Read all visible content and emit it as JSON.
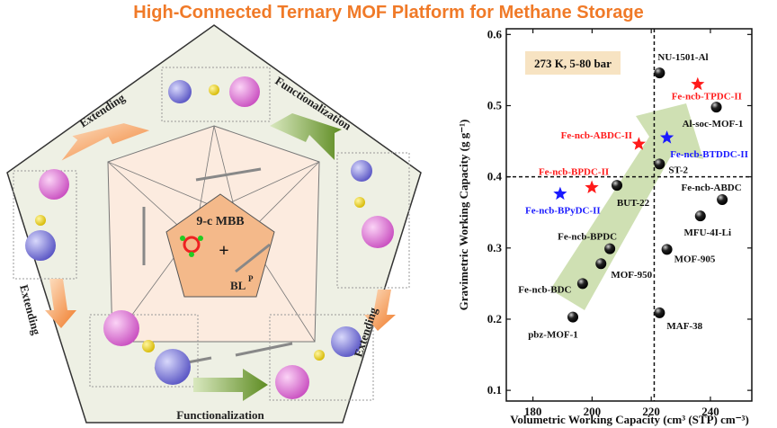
{
  "title": "High-Connected Ternary MOF Platform for Methane Storage",
  "diagram": {
    "labels": {
      "extending_top_left": "Extending",
      "functionalization_top_right": "Functionalization",
      "extending_left": "Extending",
      "extending_right": "Extending",
      "functionalization_bottom": "Functionalization"
    },
    "center": {
      "mbb": "9-c MBB",
      "plus": "+",
      "linker": "BL",
      "linker_sup": "P"
    },
    "colors": {
      "outer_fill": "#eef0e4",
      "inner_fill": "#fcebdf",
      "center_fill": "#f4b98a",
      "arrow_orange": "#f08a3c",
      "arrow_green": "#6f9a2e",
      "sphere_pink": "#e070d8",
      "sphere_blue": "#7a78d8"
    }
  },
  "chart_data": {
    "type": "scatter",
    "xlabel": "Volumetric Working Capacity (cm³ (STP) cm⁻³)",
    "ylabel": "Gravimetric Working Capacity (g g⁻¹)",
    "xlim": [
      171,
      254
    ],
    "ylim": [
      0.085,
      0.608
    ],
    "xticks": [
      180,
      200,
      220,
      240
    ],
    "yticks": [
      0.1,
      0.2,
      0.3,
      0.4,
      0.5,
      0.6
    ],
    "ytick_labels": [
      "0.1",
      "0.2",
      "0.3",
      "0.4",
      "0.5",
      "0.6"
    ],
    "grid": false,
    "annotation": "273 K, 5-80 bar",
    "annotation_bg": "#f7e3c2",
    "reference_lines": {
      "x": 221,
      "y": 0.4
    },
    "trend_arrow_color": "#c7dba6",
    "points": [
      {
        "label": "NU-1501-Al",
        "x": 222.8,
        "y": 0.546,
        "marker": "sphere",
        "color": "#000000"
      },
      {
        "label": "Fe-ncb-TPDC-II",
        "x": 235.7,
        "y": 0.53,
        "marker": "star",
        "color": "#ff1a1a"
      },
      {
        "label": "Al-soc-MOF-1",
        "x": 242.0,
        "y": 0.498,
        "marker": "sphere",
        "color": "#000000"
      },
      {
        "label": "Fe-ncb-ABDC-II",
        "x": 215.8,
        "y": 0.446,
        "marker": "star",
        "color": "#ff1a1a"
      },
      {
        "label": "Fe-ncb-BTDDC-II",
        "x": 225.3,
        "y": 0.455,
        "marker": "star",
        "color": "#1a1aff"
      },
      {
        "label": "ST-2",
        "x": 222.8,
        "y": 0.418,
        "marker": "sphere",
        "color": "#000000"
      },
      {
        "label": "Fe-ncb-BPDC-II",
        "x": 199.9,
        "y": 0.385,
        "marker": "star",
        "color": "#ff1a1a"
      },
      {
        "label": "BUT-22",
        "x": 208.4,
        "y": 0.388,
        "marker": "sphere",
        "color": "#000000"
      },
      {
        "label": "Fe-ncb-BPyDC-II",
        "x": 189.2,
        "y": 0.376,
        "marker": "star",
        "color": "#1a1aff"
      },
      {
        "label": "Fe-ncb-ABDC",
        "x": 244.0,
        "y": 0.368,
        "marker": "sphere",
        "color": "#000000"
      },
      {
        "label": "MFU-4I-Li",
        "x": 236.6,
        "y": 0.345,
        "marker": "sphere",
        "color": "#000000"
      },
      {
        "label": "Fe-ncb-BPDC",
        "x": 206.0,
        "y": 0.299,
        "marker": "sphere",
        "color": "#000000"
      },
      {
        "label": "MOF-905",
        "x": 225.3,
        "y": 0.298,
        "marker": "sphere",
        "color": "#000000"
      },
      {
        "label": "MOF-950",
        "x": 203.0,
        "y": 0.278,
        "marker": "sphere",
        "color": "#000000"
      },
      {
        "label": "Fe-ncb-BDC",
        "x": 196.8,
        "y": 0.25,
        "marker": "sphere",
        "color": "#000000"
      },
      {
        "label": "pbz-MOF-1",
        "x": 193.5,
        "y": 0.203,
        "marker": "sphere",
        "color": "#000000"
      },
      {
        "label": "MAF-38",
        "x": 222.8,
        "y": 0.209,
        "marker": "sphere",
        "color": "#000000"
      }
    ]
  }
}
